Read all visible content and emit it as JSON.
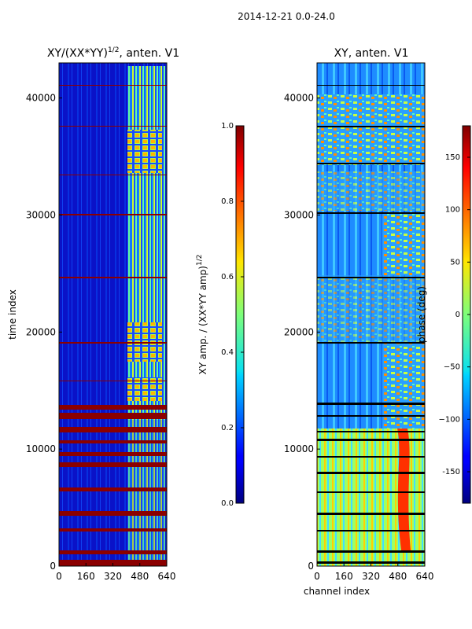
{
  "figure": {
    "suptitle": "2014-12-21 0.0-24.0"
  },
  "chart_data": [
    {
      "type": "heatmap",
      "title_prefix": "XY/(XX*YY)",
      "title_sup": "1/2",
      "title_suffix": ", anten. V1",
      "xlabel": "",
      "ylabel": "time index",
      "xlim": [
        0,
        640
      ],
      "ylim": [
        0,
        43000
      ],
      "x_ticks": [
        "0",
        "160",
        "320",
        "480",
        "640"
      ],
      "y_ticks": [
        "0",
        "10000",
        "20000",
        "30000",
        "40000"
      ],
      "colorbar": {
        "label_main": "XY amp. / (XX*YY amp)",
        "label_sup": "1/2",
        "range": [
          0.0,
          1.0
        ],
        "ticks": [
          "0.0",
          "0.2",
          "0.4",
          "0.6",
          "0.8",
          "1.0"
        ],
        "colormap": "jet"
      }
    },
    {
      "type": "heatmap",
      "title": "XY, anten. V1",
      "xlabel": "channel index",
      "ylabel": "",
      "xlim": [
        0,
        640
      ],
      "ylim": [
        0,
        43000
      ],
      "x_ticks": [
        "0",
        "160",
        "320",
        "480",
        "640"
      ],
      "y_ticks": [
        "0",
        "10000",
        "20000",
        "30000",
        "40000"
      ],
      "colorbar": {
        "label": "phase (deg)",
        "range": [
          -180,
          180
        ],
        "ticks": [
          "-150",
          "−100",
          "−50",
          "0",
          "50",
          "100",
          "150"
        ],
        "colormap": "jet"
      }
    }
  ]
}
